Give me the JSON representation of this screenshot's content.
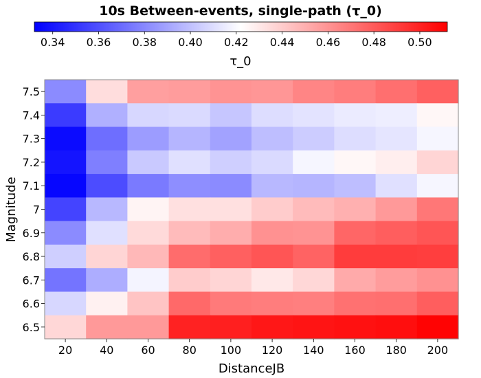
{
  "chart_data": {
    "type": "heatmap",
    "title": "10s Between-events, single-path (τ_0)",
    "xlabel": "DistanceJB",
    "ylabel": "Magnitude",
    "colorbar_label": "τ_0",
    "x_categories": [
      "20",
      "40",
      "60",
      "80",
      "100",
      "120",
      "140",
      "160",
      "180",
      "200"
    ],
    "y_categories": [
      "7.5",
      "7.4",
      "7.3",
      "7.2",
      "7.1",
      "7",
      "6.9",
      "6.8",
      "6.7",
      "6.6",
      "6.5"
    ],
    "values": [
      [
        0.381,
        0.434,
        0.456,
        0.457,
        0.46,
        0.459,
        0.465,
        0.468,
        0.473,
        0.478
      ],
      [
        0.353,
        0.394,
        0.408,
        0.409,
        0.402,
        0.41,
        0.412,
        0.415,
        0.416,
        0.425
      ],
      [
        0.336,
        0.371,
        0.387,
        0.396,
        0.389,
        0.399,
        0.404,
        0.41,
        0.413,
        0.419
      ],
      [
        0.339,
        0.377,
        0.403,
        0.411,
        0.405,
        0.409,
        0.419,
        0.425,
        0.428,
        0.437
      ],
      [
        0.334,
        0.359,
        0.375,
        0.382,
        0.381,
        0.397,
        0.396,
        0.399,
        0.411,
        0.419
      ],
      [
        0.356,
        0.397,
        0.426,
        0.433,
        0.433,
        0.44,
        0.446,
        0.45,
        0.458,
        0.47
      ],
      [
        0.381,
        0.411,
        0.435,
        0.446,
        0.451,
        0.461,
        0.46,
        0.476,
        0.479,
        0.482
      ],
      [
        0.405,
        0.437,
        0.447,
        0.474,
        0.478,
        0.482,
        0.477,
        0.491,
        0.491,
        0.49
      ],
      [
        0.373,
        0.393,
        0.418,
        0.44,
        0.437,
        0.43,
        0.436,
        0.452,
        0.457,
        0.461
      ],
      [
        0.408,
        0.427,
        0.443,
        0.475,
        0.469,
        0.468,
        0.467,
        0.472,
        0.473,
        0.479
      ],
      [
        0.436,
        0.458,
        0.458,
        0.5,
        0.501,
        0.504,
        0.505,
        0.506,
        0.507,
        0.511
      ]
    ],
    "colorbar": {
      "min": 0.332,
      "max": 0.512,
      "ticks": [
        0.34,
        0.36,
        0.38,
        0.4,
        0.42,
        0.44,
        0.46,
        0.48,
        0.5
      ],
      "tick_labels": [
        "0.34",
        "0.36",
        "0.38",
        "0.40",
        "0.42",
        "0.44",
        "0.46",
        "0.48",
        "0.50"
      ],
      "colormap": "bwr",
      "orientation": "horizontal",
      "position": "top"
    },
    "colors": {
      "low": "#0000ff",
      "mid": "#ffffff",
      "high": "#ff0000"
    },
    "grid": false
  }
}
